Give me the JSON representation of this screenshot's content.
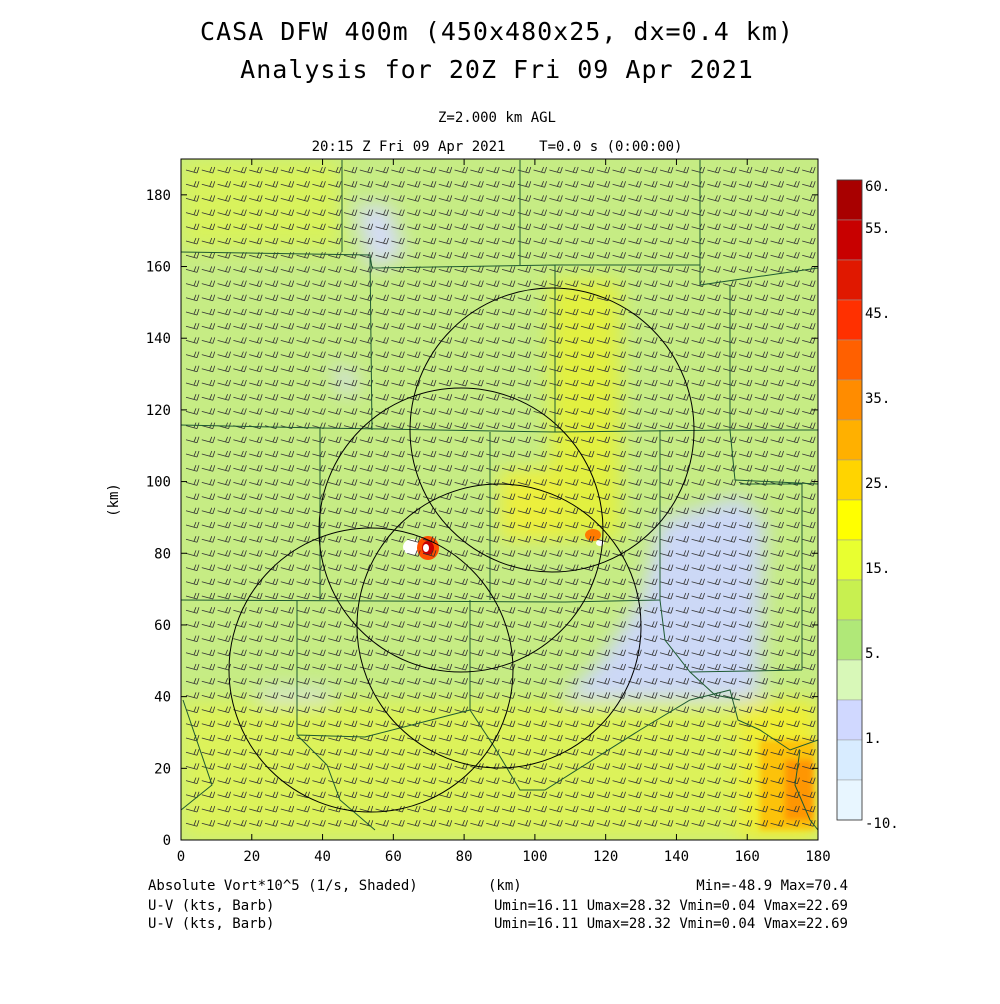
{
  "title": {
    "line1": "CASA DFW 400m (450x480x25, dx=0.4 km)",
    "line2": "Analysis for 20Z Fri 09 Apr 2021",
    "level": "Z=2.000 km AGL",
    "time": "20:15 Z Fri 09 Apr 2021    T=0.0 s (0:00:00)"
  },
  "axes": {
    "x_label": "(km)",
    "y_label": "(km)",
    "x_ticks": [
      "0",
      "20",
      "40",
      "60",
      "80",
      "100",
      "120",
      "140",
      "160",
      "180"
    ],
    "y_ticks": [
      "0",
      "20",
      "40",
      "60",
      "80",
      "100",
      "120",
      "140",
      "160",
      "180"
    ],
    "x_range": [
      0,
      180
    ],
    "y_range": [
      0,
      190
    ]
  },
  "colorbar": {
    "labels": [
      "60.",
      "55.",
      "45.",
      "35.",
      "25.",
      "15.",
      "5.",
      "1.",
      "-10."
    ],
    "colors": [
      "#a80000",
      "#c80000",
      "#e01800",
      "#ff3000",
      "#ff6000",
      "#ff8c00",
      "#ffb000",
      "#ffd400",
      "#ffff00",
      "#e8ff30",
      "#c8f050",
      "#b0e878",
      "#d8f8b8",
      "#d0d8ff",
      "#d8ecff",
      "#e8f6ff"
    ]
  },
  "footer": {
    "field_label": "Absolute Vort*10^5 (1/s, Shaded)",
    "x_unit": "(km)",
    "minmax": "Min=-48.9 Max=70.4",
    "barb1_label": "U-V (kts, Barb)",
    "barb1_stats": "Umin=16.11 Umax=28.32 Vmin=0.04 Vmax=22.69",
    "barb2_label": "U-V (kts, Barb)",
    "barb2_stats": "Umin=16.11 Umax=28.32 Vmin=0.04 Vmax=22.69"
  },
  "map": {
    "background_color": "#c6ec84",
    "radar_circle_color": "#000000",
    "county_line_color": "#1e5a32"
  }
}
